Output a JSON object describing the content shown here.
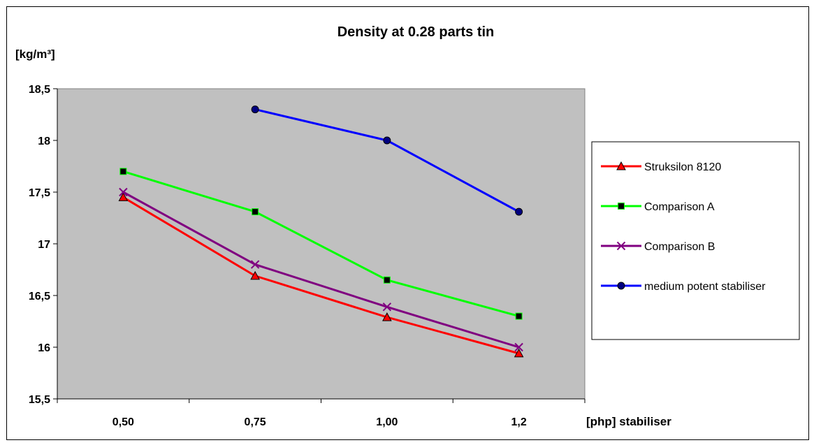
{
  "chart_data": {
    "type": "line",
    "title": "Density at 0.28 parts tin",
    "ylabel": "[kg/m³]",
    "xlabel": "[php] stabiliser",
    "categories": [
      "0,50",
      "0,75",
      "1,00",
      "1,2"
    ],
    "ylim": [
      15.5,
      18.5
    ],
    "yticks": [
      15.5,
      16,
      16.5,
      17,
      17.5,
      18,
      18.5
    ],
    "ytick_labels": [
      "15,5",
      "16",
      "16,5",
      "17",
      "17,5",
      "18",
      "18,5"
    ],
    "plot_background": "#c0c0c0",
    "grid": false,
    "legend_position": "right",
    "series": [
      {
        "name": "Struksilon 8120",
        "color": "#ff0000",
        "marker": "triangle",
        "marker_fill": "#ff0000",
        "values": [
          17.45,
          16.69,
          16.29,
          15.94
        ]
      },
      {
        "name": "Comparison A",
        "color": "#00ff00",
        "marker": "square",
        "marker_fill": "#000000",
        "values": [
          17.7,
          17.31,
          16.65,
          16.3
        ]
      },
      {
        "name": "Comparison B",
        "color": "#800080",
        "marker": "x",
        "marker_fill": "#800080",
        "values": [
          17.5,
          16.8,
          16.39,
          16.0
        ]
      },
      {
        "name": "medium potent stabiliser",
        "color": "#0000ff",
        "marker": "circle",
        "marker_fill": "#000080",
        "values": [
          null,
          18.3,
          18.0,
          17.31
        ]
      }
    ]
  }
}
